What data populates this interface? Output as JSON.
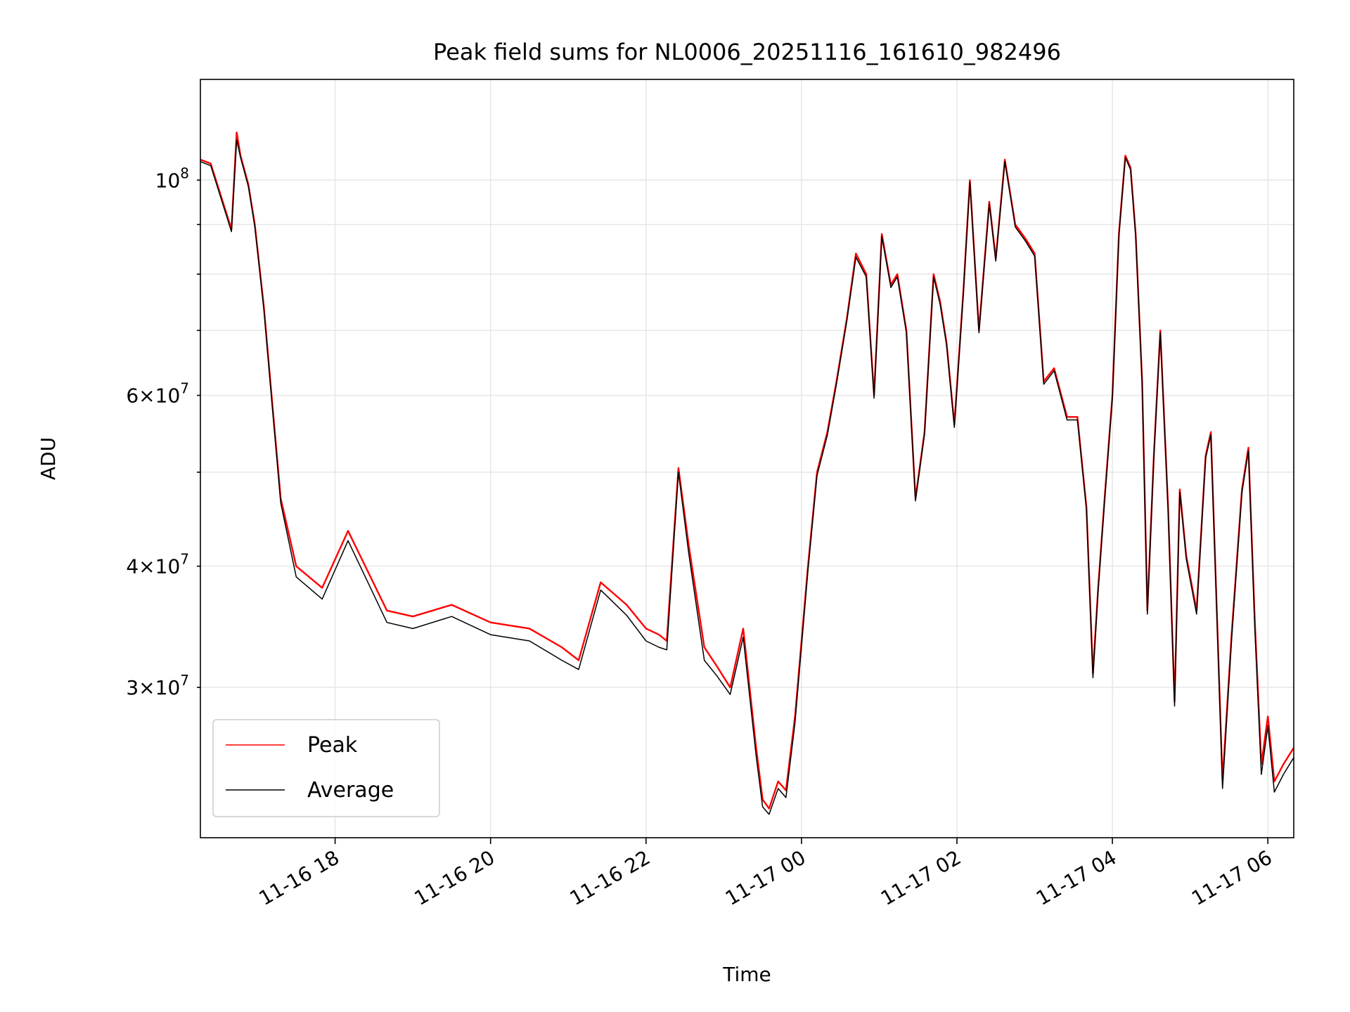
{
  "chart_data": {
    "type": "line",
    "title": "Peak field sums for NL0006_20251116_161610_982496",
    "xlabel": "Time",
    "ylabel": "ADU",
    "yscale": "log",
    "grid": true,
    "legend_position": "lower-left",
    "xlim": [
      "2025-11-16 16:16",
      "2025-11-17 06:20"
    ],
    "ylim": [
      21000000,
      127000000
    ],
    "x_ticks": [
      "11-16 18",
      "11-16 20",
      "11-16 22",
      "11-17 00",
      "11-17 02",
      "11-17 04",
      "11-17 06"
    ],
    "y_major_ticks": [
      {
        "value": 100000000,
        "mantissa": "",
        "exp": "8"
      }
    ],
    "y_minor_ticks": [
      {
        "value": 30000000,
        "mantissa": "3",
        "exp": "7"
      },
      {
        "value": 40000000,
        "mantissa": "4",
        "exp": "7"
      },
      {
        "value": 60000000,
        "mantissa": "6",
        "exp": "7"
      }
    ],
    "series": [
      {
        "name": "Peak",
        "color": "#ff0000",
        "x": [
          "2025-11-16 16:16",
          "2025-11-16 16:24",
          "2025-11-16 16:40",
          "2025-11-16 16:44",
          "2025-11-16 16:47",
          "2025-11-16 16:53",
          "2025-11-16 16:58",
          "2025-11-16 17:05",
          "2025-11-16 17:10",
          "2025-11-16 17:18",
          "2025-11-16 17:30",
          "2025-11-16 17:50",
          "2025-11-16 18:10",
          "2025-11-16 18:40",
          "2025-11-16 19:00",
          "2025-11-16 19:30",
          "2025-11-16 20:00",
          "2025-11-16 20:30",
          "2025-11-16 20:55",
          "2025-11-16 21:08",
          "2025-11-16 21:25",
          "2025-11-16 21:45",
          "2025-11-16 22:00",
          "2025-11-16 22:10",
          "2025-11-16 22:16",
          "2025-11-16 22:25",
          "2025-11-16 22:33",
          "2025-11-16 22:45",
          "2025-11-16 22:55",
          "2025-11-16 23:05",
          "2025-11-16 23:15",
          "2025-11-16 23:25",
          "2025-11-16 23:30",
          "2025-11-16 23:35",
          "2025-11-16 23:42",
          "2025-11-16 23:48",
          "2025-11-16 23:55",
          "2025-11-17 00:05",
          "2025-11-17 00:12",
          "2025-11-17 00:20",
          "2025-11-17 00:27",
          "2025-11-17 00:35",
          "2025-11-17 00:42",
          "2025-11-17 00:50",
          "2025-11-17 00:56",
          "2025-11-17 01:02",
          "2025-11-17 01:09",
          "2025-11-17 01:14",
          "2025-11-17 01:21",
          "2025-11-17 01:28",
          "2025-11-17 01:35",
          "2025-11-17 01:42",
          "2025-11-17 01:47",
          "2025-11-17 01:52",
          "2025-11-17 01:58",
          "2025-11-17 02:05",
          "2025-11-17 02:10",
          "2025-11-17 02:17",
          "2025-11-17 02:25",
          "2025-11-17 02:30",
          "2025-11-17 02:37",
          "2025-11-17 02:45",
          "2025-11-17 02:53",
          "2025-11-17 03:00",
          "2025-11-17 03:07",
          "2025-11-17 03:15",
          "2025-11-17 03:25",
          "2025-11-17 03:33",
          "2025-11-17 03:40",
          "2025-11-17 03:45",
          "2025-11-17 03:49",
          "2025-11-17 03:54",
          "2025-11-17 04:00",
          "2025-11-17 04:05",
          "2025-11-17 04:10",
          "2025-11-17 04:14",
          "2025-11-17 04:18",
          "2025-11-17 04:23",
          "2025-11-17 04:27",
          "2025-11-17 04:32",
          "2025-11-17 04:37",
          "2025-11-17 04:43",
          "2025-11-17 04:48",
          "2025-11-17 04:52",
          "2025-11-17 04:57",
          "2025-11-17 05:05",
          "2025-11-17 05:12",
          "2025-11-17 05:16",
          "2025-11-17 05:20",
          "2025-11-17 05:25",
          "2025-11-17 05:32",
          "2025-11-17 05:40",
          "2025-11-17 05:45",
          "2025-11-17 05:50",
          "2025-11-17 05:55",
          "2025-11-17 06:00",
          "2025-11-17 06:05",
          "2025-11-17 06:12",
          "2025-11-17 06:20"
        ],
        "y": [
          105000000,
          104000000,
          89000000,
          112000000,
          106000000,
          99000000,
          90000000,
          74000000,
          62000000,
          47000000,
          40000000,
          38000000,
          43500000,
          36000000,
          35500000,
          36500000,
          35000000,
          34500000,
          33000000,
          32000000,
          38500000,
          36500000,
          34500000,
          34000000,
          33500000,
          50500000,
          42000000,
          33000000,
          31500000,
          30000000,
          34500000,
          26000000,
          23000000,
          22500000,
          24000000,
          23500000,
          28000000,
          40000000,
          50000000,
          55000000,
          62000000,
          72000000,
          84000000,
          80000000,
          60000000,
          88000000,
          78000000,
          80000000,
          70000000,
          47000000,
          55000000,
          80000000,
          75000000,
          68000000,
          56000000,
          77000000,
          100000000,
          70000000,
          95000000,
          83000000,
          105000000,
          90000000,
          87000000,
          84000000,
          62000000,
          64000000,
          57000000,
          57000000,
          46000000,
          31000000,
          38000000,
          47000000,
          60000000,
          88000000,
          106000000,
          103000000,
          88000000,
          62000000,
          36000000,
          52000000,
          70000000,
          46000000,
          29000000,
          48000000,
          41000000,
          36000000,
          52000000,
          55000000,
          38000000,
          24000000,
          34000000,
          48000000,
          53000000,
          35000000,
          25000000,
          28000000,
          24000000,
          25000000,
          26000000
        ]
      },
      {
        "name": "Average",
        "color": "#000000",
        "x": [
          "2025-11-16 16:16",
          "2025-11-16 16:24",
          "2025-11-16 16:40",
          "2025-11-16 16:44",
          "2025-11-16 16:47",
          "2025-11-16 16:53",
          "2025-11-16 16:58",
          "2025-11-16 17:05",
          "2025-11-16 17:10",
          "2025-11-16 17:18",
          "2025-11-16 17:30",
          "2025-11-16 17:50",
          "2025-11-16 18:10",
          "2025-11-16 18:40",
          "2025-11-16 19:00",
          "2025-11-16 19:30",
          "2025-11-16 20:00",
          "2025-11-16 20:30",
          "2025-11-16 20:55",
          "2025-11-16 21:08",
          "2025-11-16 21:25",
          "2025-11-16 21:45",
          "2025-11-16 22:00",
          "2025-11-16 22:10",
          "2025-11-16 22:16",
          "2025-11-16 22:25",
          "2025-11-16 22:33",
          "2025-11-16 22:45",
          "2025-11-16 22:55",
          "2025-11-16 23:05",
          "2025-11-16 23:15",
          "2025-11-16 23:25",
          "2025-11-16 23:30",
          "2025-11-16 23:35",
          "2025-11-16 23:42",
          "2025-11-16 23:48",
          "2025-11-16 23:55",
          "2025-11-17 00:05",
          "2025-11-17 00:12",
          "2025-11-17 00:20",
          "2025-11-17 00:27",
          "2025-11-17 00:35",
          "2025-11-17 00:42",
          "2025-11-17 00:50",
          "2025-11-17 00:56",
          "2025-11-17 01:02",
          "2025-11-17 01:09",
          "2025-11-17 01:14",
          "2025-11-17 01:21",
          "2025-11-17 01:28",
          "2025-11-17 01:35",
          "2025-11-17 01:42",
          "2025-11-17 01:47",
          "2025-11-17 01:52",
          "2025-11-17 01:58",
          "2025-11-17 02:05",
          "2025-11-17 02:10",
          "2025-11-17 02:17",
          "2025-11-17 02:25",
          "2025-11-17 02:30",
          "2025-11-17 02:37",
          "2025-11-17 02:45",
          "2025-11-17 02:53",
          "2025-11-17 03:00",
          "2025-11-17 03:07",
          "2025-11-17 03:15",
          "2025-11-17 03:25",
          "2025-11-17 03:33",
          "2025-11-17 03:40",
          "2025-11-17 03:45",
          "2025-11-17 03:49",
          "2025-11-17 03:54",
          "2025-11-17 04:00",
          "2025-11-17 04:05",
          "2025-11-17 04:10",
          "2025-11-17 04:14",
          "2025-11-17 04:18",
          "2025-11-17 04:23",
          "2025-11-17 04:27",
          "2025-11-17 04:32",
          "2025-11-17 04:37",
          "2025-11-17 04:43",
          "2025-11-17 04:48",
          "2025-11-17 04:52",
          "2025-11-17 04:57",
          "2025-11-17 05:05",
          "2025-11-17 05:12",
          "2025-11-17 05:16",
          "2025-11-17 05:20",
          "2025-11-17 05:25",
          "2025-11-17 05:32",
          "2025-11-17 05:40",
          "2025-11-17 05:45",
          "2025-11-17 05:50",
          "2025-11-17 05:55",
          "2025-11-17 06:00",
          "2025-11-17 06:05",
          "2025-11-17 06:12",
          "2025-11-17 06:20"
        ],
        "y": [
          104500000,
          103500000,
          88500000,
          110000000,
          105500000,
          98500000,
          89500000,
          73500000,
          61500000,
          46500000,
          39000000,
          37000000,
          42500000,
          35000000,
          34500000,
          35500000,
          34000000,
          33500000,
          32000000,
          31300000,
          37800000,
          35600000,
          33500000,
          33000000,
          32800000,
          50000000,
          41200000,
          32000000,
          30800000,
          29500000,
          33800000,
          25500000,
          22600000,
          22200000,
          23600000,
          23100000,
          27600000,
          39600000,
          49600000,
          54600000,
          61600000,
          71600000,
          83300000,
          79500000,
          59600000,
          87500000,
          77500000,
          79500000,
          69600000,
          46700000,
          54700000,
          79500000,
          74500000,
          67600000,
          55600000,
          76500000,
          99500000,
          69600000,
          94500000,
          82500000,
          104500000,
          89500000,
          86500000,
          83500000,
          61600000,
          63600000,
          56600000,
          56600000,
          45700000,
          30700000,
          37700000,
          46700000,
          59600000,
          87500000,
          105500000,
          102500000,
          87500000,
          61600000,
          35700000,
          51700000,
          69600000,
          45700000,
          28700000,
          47700000,
          40700000,
          35700000,
          51700000,
          54600000,
          37700000,
          23600000,
          33600000,
          47600000,
          52600000,
          34400000,
          24400000,
          27400000,
          23400000,
          24400000,
          25400000
        ]
      }
    ]
  }
}
